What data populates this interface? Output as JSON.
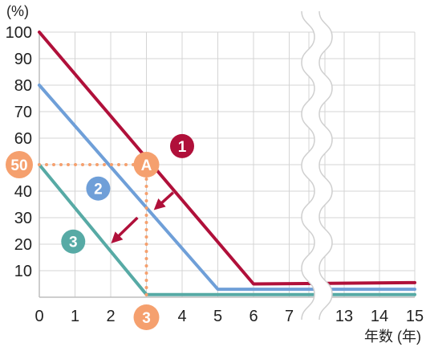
{
  "chart_data": {
    "type": "line",
    "ylabel": "(%)",
    "xlabel": "年数 (年)",
    "x_ticks_left": [
      0,
      1,
      2,
      3,
      4,
      5,
      6,
      7
    ],
    "x_ticks_right": [
      13,
      14,
      15
    ],
    "x_axis_break_after": 7,
    "y_ticks": [
      10,
      20,
      30,
      40,
      50,
      60,
      70,
      80,
      90,
      100
    ],
    "ylim": [
      0,
      100
    ],
    "grid": true,
    "series": [
      {
        "name": "1",
        "color": "#b0103a",
        "points": [
          [
            0,
            100
          ],
          [
            6,
            5
          ],
          [
            15,
            5.5
          ]
        ]
      },
      {
        "name": "2",
        "color": "#6f9fd8",
        "points": [
          [
            0,
            80
          ],
          [
            5,
            3
          ],
          [
            15,
            3
          ]
        ]
      },
      {
        "name": "3",
        "color": "#57aaa5",
        "points": [
          [
            0,
            50
          ],
          [
            3,
            1
          ],
          [
            15,
            1
          ]
        ]
      }
    ],
    "series_markers": [
      {
        "label": "1",
        "x": 4,
        "y": 57,
        "color": "#b0103a"
      },
      {
        "label": "2",
        "x": 1.65,
        "y": 41,
        "color": "#6f9fd8"
      },
      {
        "label": "3",
        "x": 0.95,
        "y": 21,
        "color": "#57aaa5"
      }
    ],
    "annotations": {
      "point_a": {
        "label": "A",
        "x": 3,
        "y": 50,
        "color": "#f5a06e"
      },
      "y_marker": {
        "label": "50",
        "value": 50,
        "color": "#f5a06e"
      },
      "x_marker": {
        "label": "3",
        "value": 3,
        "color": "#f5a06e"
      },
      "guide_color": "#f5a06e",
      "arrow_color": "#b0103a",
      "arrows": [
        {
          "from": [
            3.75,
            39.5
          ],
          "to": [
            3.3,
            34
          ]
        },
        {
          "from": [
            2.75,
            30
          ],
          "to": [
            2.1,
            21.5
          ]
        }
      ]
    }
  }
}
